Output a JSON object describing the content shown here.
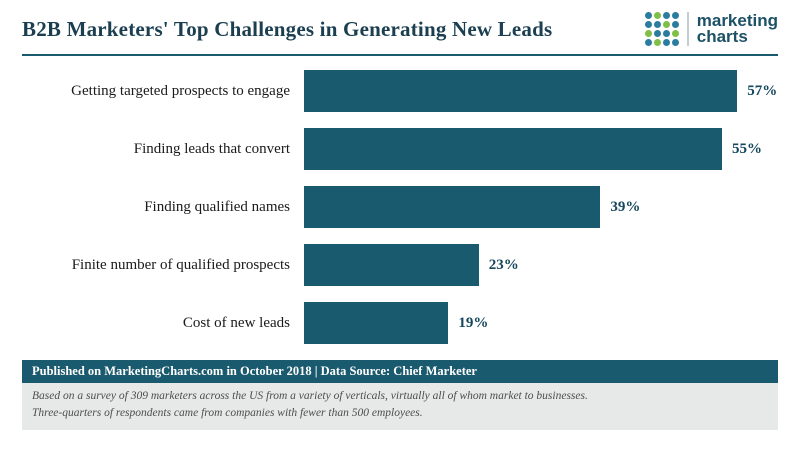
{
  "header": {
    "logo": {
      "line1": "marketing",
      "line2": "charts",
      "dot_grid": [
        "bgbb",
        "bbgb",
        "gbbg",
        "bgbb"
      ]
    }
  },
  "chart_data": {
    "type": "bar",
    "orientation": "horizontal",
    "title": "B2B Marketers' Top Challenges in Generating New Leads",
    "categories": [
      "Getting targeted prospects to engage",
      "Finding leads that convert",
      "Finding qualified names",
      "Finite number of qualified prospects",
      "Cost of new leads"
    ],
    "values": [
      57,
      55,
      39,
      23,
      19
    ],
    "value_suffix": "%",
    "xlabel": "",
    "ylabel": "",
    "xlim": [
      0,
      60
    ],
    "grid": false,
    "legend": false
  },
  "footer": {
    "published": "Published on MarketingCharts.com in October 2018 | Data Source: Chief Marketer",
    "note1": "Based on a survey of 309 marketers across the US from a variety of verticals, virtually all of whom market to businesses.",
    "note2": "Three-quarters of respondents came from companies with fewer than 500 employees."
  },
  "colors": {
    "bar": "#1a5a6e",
    "accent_line": "#1a5a6e",
    "value_text": "#14475c",
    "footer_bg": "#1a5a6e",
    "notes_bg": "#e7e8e8",
    "notes_text": "#4d4d4d",
    "logo_text": "#1d5166",
    "dot_blue": "#2b7da0",
    "dot_green": "#80bf45"
  }
}
